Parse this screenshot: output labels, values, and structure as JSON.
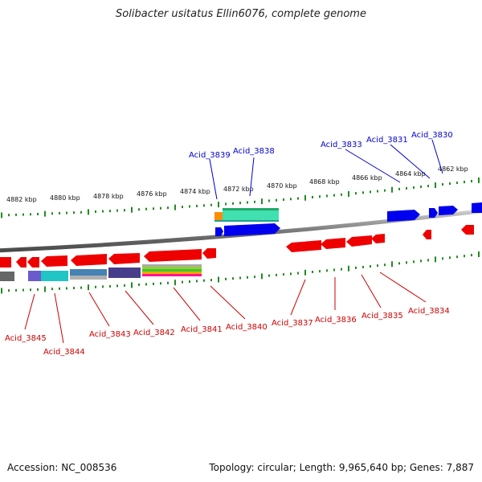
{
  "title": "Solibacter usitatus Ellin6076, complete genome",
  "footer": {
    "accession": "Accession: NC_008536",
    "summary": "Topology: circular; Length: 9,965,640 bp; Genes: 7,887"
  },
  "kbp_ticks": [
    "4882 kbp",
    "4880 kbp",
    "4878 kbp",
    "4876 kbp",
    "4874 kbp",
    "4872 kbp",
    "4870 kbp",
    "4868 kbp",
    "4866 kbp",
    "4864 kbp",
    "4862 kbp"
  ],
  "colors": {
    "forward": "#0000ee",
    "reverse": "#ee0000",
    "tick": "#228b22",
    "backbone": "#888888"
  },
  "forward_labels": [
    "Acid_3839",
    "Acid_3838",
    "Acid_3833",
    "Acid_3831",
    "Acid_3830"
  ],
  "reverse_labels": [
    "Acid_3845",
    "Acid_3844",
    "Acid_3843",
    "Acid_3842",
    "Acid_3841",
    "Acid_3840",
    "Acid_3837",
    "Acid_3836",
    "Acid_3835",
    "Acid_3834"
  ]
}
